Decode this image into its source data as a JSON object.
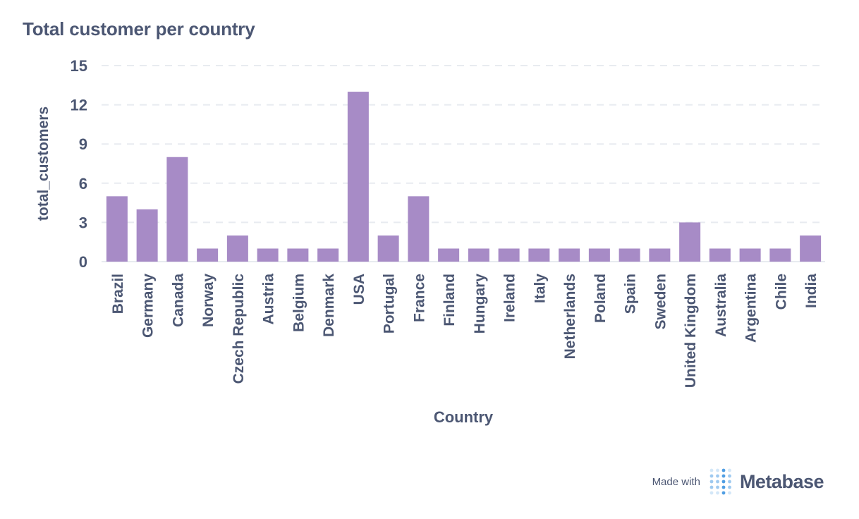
{
  "page": {
    "title": "Total customer per country"
  },
  "footer": {
    "made_with": "Made with",
    "brand": "Metabase"
  },
  "colors": {
    "bar": "#a78bc6",
    "text": "#4c5773",
    "grid": "#e8ebf0",
    "logo": "#509ee3"
  },
  "chart_data": {
    "type": "bar",
    "title": "Total customer per country",
    "xlabel": "Country",
    "ylabel": "total_customers",
    "ylim": [
      0,
      15
    ],
    "yticks": [
      "0",
      "3",
      "6",
      "9",
      "12",
      "15"
    ],
    "grid": true,
    "categories": [
      "Brazil",
      "Germany",
      "Canada",
      "Norway",
      "Czech Republic",
      "Austria",
      "Belgium",
      "Denmark",
      "USA",
      "Portugal",
      "France",
      "Finland",
      "Hungary",
      "Ireland",
      "Italy",
      "Netherlands",
      "Poland",
      "Spain",
      "Sweden",
      "United Kingdom",
      "Australia",
      "Argentina",
      "Chile",
      "India"
    ],
    "series": [
      {
        "values": [
          5,
          4,
          8,
          1,
          2,
          1,
          1,
          1,
          13,
          2,
          5,
          1,
          1,
          1,
          1,
          1,
          1,
          1,
          1,
          3,
          1,
          1,
          1,
          2
        ]
      }
    ]
  }
}
